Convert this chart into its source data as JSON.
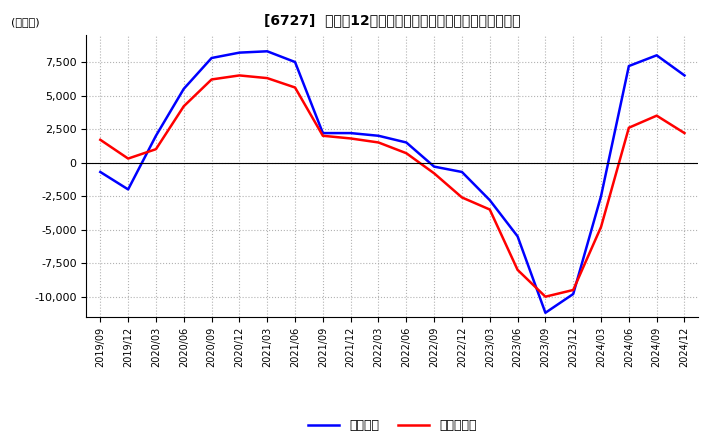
{
  "title": "[6727]  利益だ12か月移動合計の対前年同期増減額の推移",
  "ylabel": "(百万円)",
  "ylim": [
    -11500,
    9500
  ],
  "yticks": [
    -10000,
    -7500,
    -5000,
    -2500,
    0,
    2500,
    5000,
    7500
  ],
  "legend_labels": [
    "経常利益",
    "当期純利益"
  ],
  "line_colors": [
    "#0000FF",
    "#FF0000"
  ],
  "background_color": "#FFFFFF",
  "x_labels": [
    "2019/09",
    "2019/12",
    "2020/03",
    "2020/06",
    "2020/09",
    "2020/12",
    "2021/03",
    "2021/06",
    "2021/09",
    "2021/12",
    "2022/03",
    "2022/06",
    "2022/09",
    "2022/12",
    "2023/03",
    "2023/06",
    "2023/09",
    "2023/12",
    "2024/03",
    "2024/06",
    "2024/09",
    "2024/12"
  ],
  "operating_profit": [
    -700,
    -2000,
    2000,
    5500,
    7800,
    8200,
    8300,
    7500,
    2200,
    2200,
    2000,
    1500,
    -300,
    -700,
    -2800,
    -5500,
    -11200,
    -9800,
    -2500,
    7200,
    8000,
    6500
  ],
  "net_profit": [
    1700,
    300,
    1000,
    4200,
    6200,
    6500,
    6300,
    5600,
    2000,
    1800,
    1500,
    700,
    -800,
    -2600,
    -3500,
    -8000,
    -10000,
    -9500,
    -4800,
    2600,
    3500,
    2200
  ]
}
